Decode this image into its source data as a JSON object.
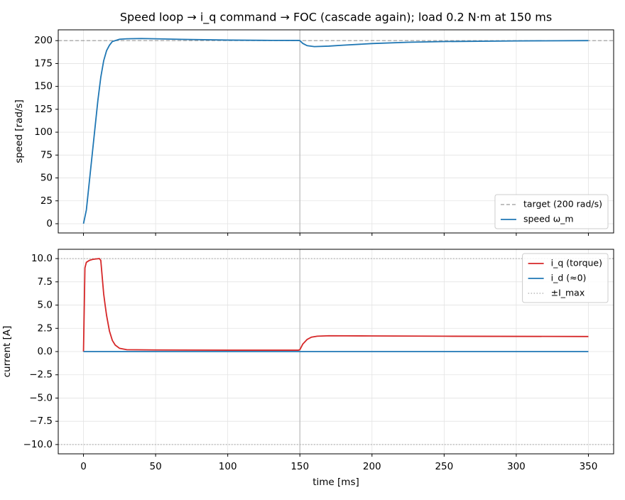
{
  "chart_data": [
    {
      "type": "line",
      "title": "Speed loop → i_q command → FOC (cascade again); load 0.2 N·m at 150 ms",
      "ylabel": "speed [rad/s]",
      "xlim": [
        -17.5,
        367.5
      ],
      "xticks": [
        0,
        50,
        100,
        150,
        200,
        250,
        300,
        350
      ],
      "show_xtick_labels": false,
      "ylim": [
        -10.1,
        211.8
      ],
      "yticks": [
        0,
        25,
        50,
        75,
        100,
        125,
        150,
        175,
        200
      ],
      "grid": true,
      "legend_loc": "lower right",
      "legend_order": [
        "hlines",
        "series"
      ],
      "hlines": [
        {
          "name": "target (200 rad/s)",
          "values": [
            200
          ],
          "color": "#999999",
          "dash": "dashed"
        }
      ],
      "vlines": [
        {
          "value": 150,
          "color": "#bbbbbb"
        }
      ],
      "series": [
        {
          "name": "speed ω_m",
          "color": "#1f77b4",
          "x": [
            0,
            2,
            4,
            6,
            8,
            10,
            12,
            14,
            16,
            18,
            20,
            25,
            30,
            40,
            50,
            75,
            100,
            125,
            149,
            150,
            152,
            155,
            160,
            170,
            180,
            200,
            225,
            250,
            300,
            350
          ],
          "values": [
            0,
            15,
            45,
            75,
            105,
            135,
            160,
            178,
            189,
            195,
            199,
            201.5,
            202,
            202.3,
            202,
            201.2,
            200.6,
            200.3,
            200.2,
            200,
            197,
            194.5,
            193.5,
            194,
            195,
            196.8,
            198.2,
            199,
            199.7,
            200
          ]
        }
      ]
    },
    {
      "type": "line",
      "ylabel": "current [A]",
      "xlabel": "time [ms]",
      "xlim": [
        -17.5,
        367.5
      ],
      "xticks": [
        0,
        50,
        100,
        150,
        200,
        250,
        300,
        350
      ],
      "show_xtick_labels": true,
      "ylim": [
        -11,
        11
      ],
      "yticks": [
        {
          "value": -10,
          "label": "−10.0"
        },
        {
          "value": -7.5,
          "label": "−7.5"
        },
        {
          "value": -5,
          "label": "−5.0"
        },
        {
          "value": -2.5,
          "label": "−2.5"
        },
        {
          "value": 0,
          "label": "0.0"
        },
        {
          "value": 2.5,
          "label": "2.5"
        },
        {
          "value": 5,
          "label": "5.0"
        },
        {
          "value": 7.5,
          "label": "7.5"
        },
        {
          "value": 10,
          "label": "10.0"
        }
      ],
      "grid": true,
      "legend_loc": "upper right",
      "legend_order": [
        "series",
        "hlines"
      ],
      "hlines": [
        {
          "name": "±I_max",
          "values": [
            10,
            -10
          ],
          "color": "#aaaaaa",
          "dash": "dotted"
        }
      ],
      "vlines": [
        {
          "value": 150,
          "color": "#bbbbbb"
        }
      ],
      "series": [
        {
          "name": "i_q (torque)",
          "color": "#d62728",
          "x": [
            0,
            1,
            2,
            4,
            6,
            8,
            11,
            12,
            13,
            14,
            15,
            16,
            18,
            20,
            22,
            25,
            30,
            50,
            100,
            149,
            150,
            152,
            155,
            158,
            162,
            170,
            200,
            250,
            350
          ],
          "values": [
            0,
            9,
            9.6,
            9.8,
            9.9,
            9.95,
            10,
            9.8,
            8,
            6.2,
            5,
            3.9,
            2.2,
            1.2,
            0.7,
            0.35,
            0.2,
            0.17,
            0.15,
            0.15,
            0.2,
            0.8,
            1.3,
            1.55,
            1.65,
            1.7,
            1.68,
            1.65,
            1.62
          ]
        },
        {
          "name": "i_d (≈0)",
          "color": "#1f77b4",
          "x": [
            0,
            350
          ],
          "values": [
            0,
            0
          ]
        }
      ]
    }
  ]
}
